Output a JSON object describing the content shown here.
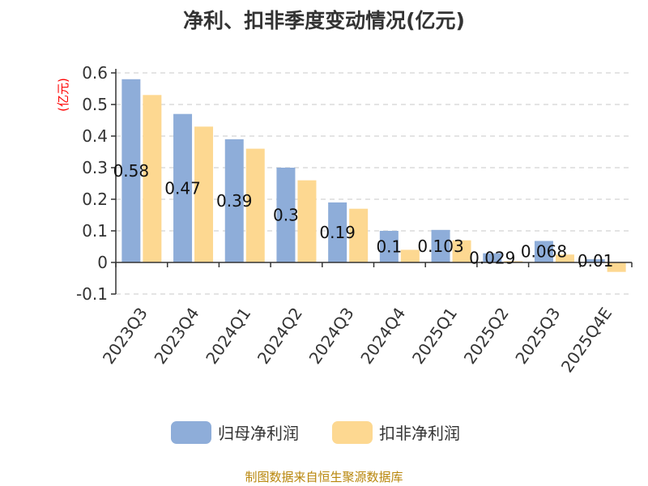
{
  "chart_title": "净利、扣非季度变动情况(亿元)",
  "source_note": "制图数据来自恒生聚源数据库",
  "colors": {
    "series1": "#8eadd9",
    "series2": "#fdd891"
  },
  "chart_data": {
    "type": "bar",
    "title": "净利、扣非季度变动情况(亿元)",
    "ylabel": "(亿元)",
    "xlabel": "",
    "ylim": [
      -0.1,
      0.6
    ],
    "yticks": [
      -0.1,
      0,
      0.1,
      0.2,
      0.3,
      0.4,
      0.5,
      0.6
    ],
    "grid": true,
    "legend_position": "bottom",
    "categories": [
      "2023Q3",
      "2023Q4",
      "2024Q1",
      "2024Q2",
      "2024Q3",
      "2024Q4",
      "2025Q1",
      "2025Q2",
      "2025Q3",
      "2025Q4E"
    ],
    "series": [
      {
        "name": "归母净利润",
        "values": [
          0.58,
          0.47,
          0.39,
          0.3,
          0.19,
          0.1,
          0.103,
          0.029,
          0.068,
          0.01
        ],
        "labels": [
          "0.58",
          "0.47",
          "0.39",
          "0.3",
          "0.19",
          "0.1",
          "0.103",
          "0.029",
          "0.068",
          "0.01"
        ]
      },
      {
        "name": "扣非净利润",
        "values": [
          0.53,
          0.43,
          0.36,
          0.26,
          0.17,
          0.04,
          0.07,
          0.004,
          0.025,
          -0.03
        ]
      }
    ]
  }
}
